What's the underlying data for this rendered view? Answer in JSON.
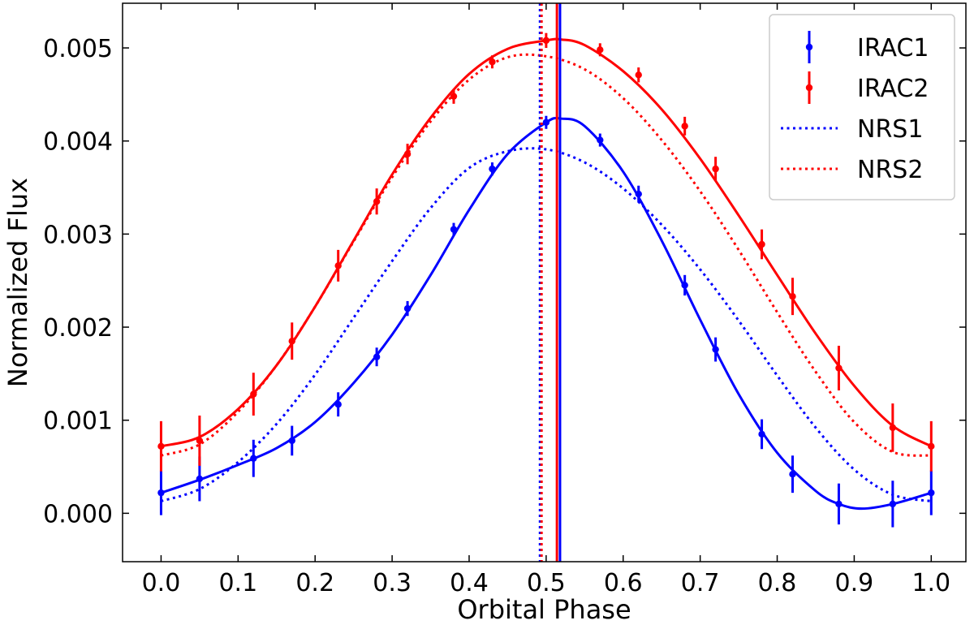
{
  "chart_data": {
    "type": "line",
    "title": "",
    "xlabel": "Orbital Phase",
    "ylabel": "Normalized Flux",
    "xlim": [
      -0.05,
      1.045
    ],
    "ylim": [
      -0.00052,
      0.00548
    ],
    "grid": false,
    "legend_position": "top-right",
    "x_ticks": [
      0.0,
      0.1,
      0.2,
      0.3,
      0.4,
      0.5,
      0.6,
      0.7,
      0.8,
      0.9,
      1.0
    ],
    "x_tick_labels": [
      "0.0",
      "0.1",
      "0.2",
      "0.3",
      "0.4",
      "0.5",
      "0.6",
      "0.7",
      "0.8",
      "0.9",
      "1.0"
    ],
    "y_ticks": [
      0.0,
      0.001,
      0.002,
      0.003,
      0.004,
      0.005
    ],
    "y_tick_labels": [
      "0.000",
      "0.001",
      "0.002",
      "0.003",
      "0.004",
      "0.005"
    ],
    "legend": [
      {
        "label": "IRAC1",
        "color": "#0000ff",
        "style": "errorbar"
      },
      {
        "label": "IRAC2",
        "color": "#ff0000",
        "style": "errorbar"
      },
      {
        "label": "NRS1",
        "color": "#0000ff",
        "style": "dotted"
      },
      {
        "label": "NRS2",
        "color": "#ff0000",
        "style": "dotted"
      }
    ],
    "series": [
      {
        "name": "IRAC1",
        "kind": "data",
        "color": "#0000ff",
        "x": [
          0.0,
          0.05,
          0.12,
          0.17,
          0.23,
          0.28,
          0.32,
          0.38,
          0.43,
          0.5,
          0.57,
          0.62,
          0.68,
          0.72,
          0.78,
          0.82,
          0.88,
          0.95,
          1.0
        ],
        "y": [
          0.00022,
          0.00037,
          0.00059,
          0.00078,
          0.00117,
          0.00168,
          0.0022,
          0.00305,
          0.0037,
          0.0042,
          0.00401,
          0.00343,
          0.00245,
          0.00176,
          0.00085,
          0.00042,
          0.0001,
          0.0001,
          0.00022
        ],
        "err": [
          0.00024,
          0.00024,
          0.0002,
          0.00016,
          0.00013,
          0.0001,
          8e-05,
          7e-05,
          7e-05,
          7e-05,
          7e-05,
          9e-05,
          0.00011,
          0.00013,
          0.00016,
          0.0002,
          0.00022,
          0.00025,
          0.00024
        ]
      },
      {
        "name": "IRAC2",
        "kind": "data",
        "color": "#ff0000",
        "x": [
          0.0,
          0.05,
          0.12,
          0.17,
          0.23,
          0.28,
          0.32,
          0.38,
          0.43,
          0.5,
          0.57,
          0.62,
          0.68,
          0.72,
          0.78,
          0.82,
          0.88,
          0.95,
          1.0
        ],
        "y": [
          0.00072,
          0.00078,
          0.00128,
          0.00185,
          0.00266,
          0.00335,
          0.00386,
          0.00448,
          0.00485,
          0.00508,
          0.00498,
          0.00471,
          0.00416,
          0.0037,
          0.00289,
          0.00233,
          0.00156,
          0.00092,
          0.00072
        ],
        "err": [
          0.00027,
          0.00027,
          0.00023,
          0.0002,
          0.00017,
          0.00014,
          0.00011,
          8e-05,
          7e-05,
          8e-05,
          7e-05,
          8e-05,
          0.0001,
          0.00013,
          0.00016,
          0.0002,
          0.00024,
          0.00026,
          0.00027
        ]
      },
      {
        "name": "IRAC1 fit",
        "kind": "curve",
        "style": "solid",
        "color": "#0000ff",
        "x": [
          0.0,
          0.05,
          0.1,
          0.15,
          0.2,
          0.25,
          0.3,
          0.35,
          0.4,
          0.45,
          0.5,
          0.52,
          0.55,
          0.6,
          0.65,
          0.7,
          0.75,
          0.8,
          0.85,
          0.88,
          0.91,
          0.95,
          1.0
        ],
        "y": [
          0.00022,
          0.00036,
          0.00052,
          0.0007,
          0.00098,
          0.0014,
          0.00192,
          0.00256,
          0.00326,
          0.00386,
          0.0042,
          0.00424,
          0.00416,
          0.00367,
          0.00293,
          0.00208,
          0.00128,
          0.00065,
          0.00024,
          0.0001,
          5e-05,
          0.0001,
          0.00022
        ]
      },
      {
        "name": "IRAC2 fit",
        "kind": "curve",
        "style": "solid",
        "color": "#ff0000",
        "x": [
          0.0,
          0.05,
          0.1,
          0.15,
          0.2,
          0.25,
          0.3,
          0.35,
          0.4,
          0.45,
          0.5,
          0.52,
          0.55,
          0.6,
          0.65,
          0.7,
          0.75,
          0.8,
          0.85,
          0.9,
          0.95,
          1.0
        ],
        "y": [
          0.00072,
          0.00082,
          0.00112,
          0.00159,
          0.00222,
          0.00293,
          0.00364,
          0.00425,
          0.00472,
          0.00499,
          0.00508,
          0.00509,
          0.00503,
          0.00475,
          0.00434,
          0.00381,
          0.0032,
          0.00256,
          0.00193,
          0.00137,
          0.00094,
          0.00072
        ]
      },
      {
        "name": "NRS1",
        "kind": "curve",
        "style": "dotted",
        "color": "#0000ff",
        "x": [
          0.0,
          0.05,
          0.1,
          0.15,
          0.2,
          0.25,
          0.3,
          0.35,
          0.4,
          0.45,
          0.5,
          0.55,
          0.6,
          0.65,
          0.7,
          0.75,
          0.8,
          0.85,
          0.9,
          0.95,
          1.0
        ],
        "y": [
          0.00013,
          0.00026,
          0.00055,
          0.00096,
          0.00149,
          0.0021,
          0.00271,
          0.00328,
          0.00371,
          0.00389,
          0.00391,
          0.00377,
          0.00349,
          0.0031,
          0.00262,
          0.00207,
          0.00148,
          0.00092,
          0.00047,
          0.0002,
          0.00013
        ]
      },
      {
        "name": "NRS2",
        "kind": "curve",
        "style": "dotted",
        "color": "#ff0000",
        "x": [
          0.0,
          0.05,
          0.1,
          0.15,
          0.2,
          0.25,
          0.3,
          0.35,
          0.4,
          0.45,
          0.5,
          0.55,
          0.6,
          0.65,
          0.7,
          0.75,
          0.8,
          0.85,
          0.9,
          0.95,
          1.0
        ],
        "y": [
          0.00062,
          0.00074,
          0.00109,
          0.00159,
          0.00222,
          0.00292,
          0.00361,
          0.00421,
          0.00466,
          0.0049,
          0.00491,
          0.00477,
          0.00446,
          0.00401,
          0.00346,
          0.00283,
          0.00216,
          0.00152,
          0.00098,
          0.00066,
          0.00062
        ]
      }
    ],
    "vertical_lines": [
      {
        "name": "NRS1 peak",
        "x": 0.492,
        "color": "#0000ff",
        "style": "dotted"
      },
      {
        "name": "NRS2 peak",
        "x": 0.494,
        "color": "#ff0000",
        "style": "dotted"
      },
      {
        "name": "IRAC2 peak",
        "x": 0.514,
        "color": "#ff0000",
        "style": "solid"
      },
      {
        "name": "IRAC1 peak",
        "x": 0.518,
        "color": "#0000ff",
        "style": "solid"
      }
    ]
  }
}
